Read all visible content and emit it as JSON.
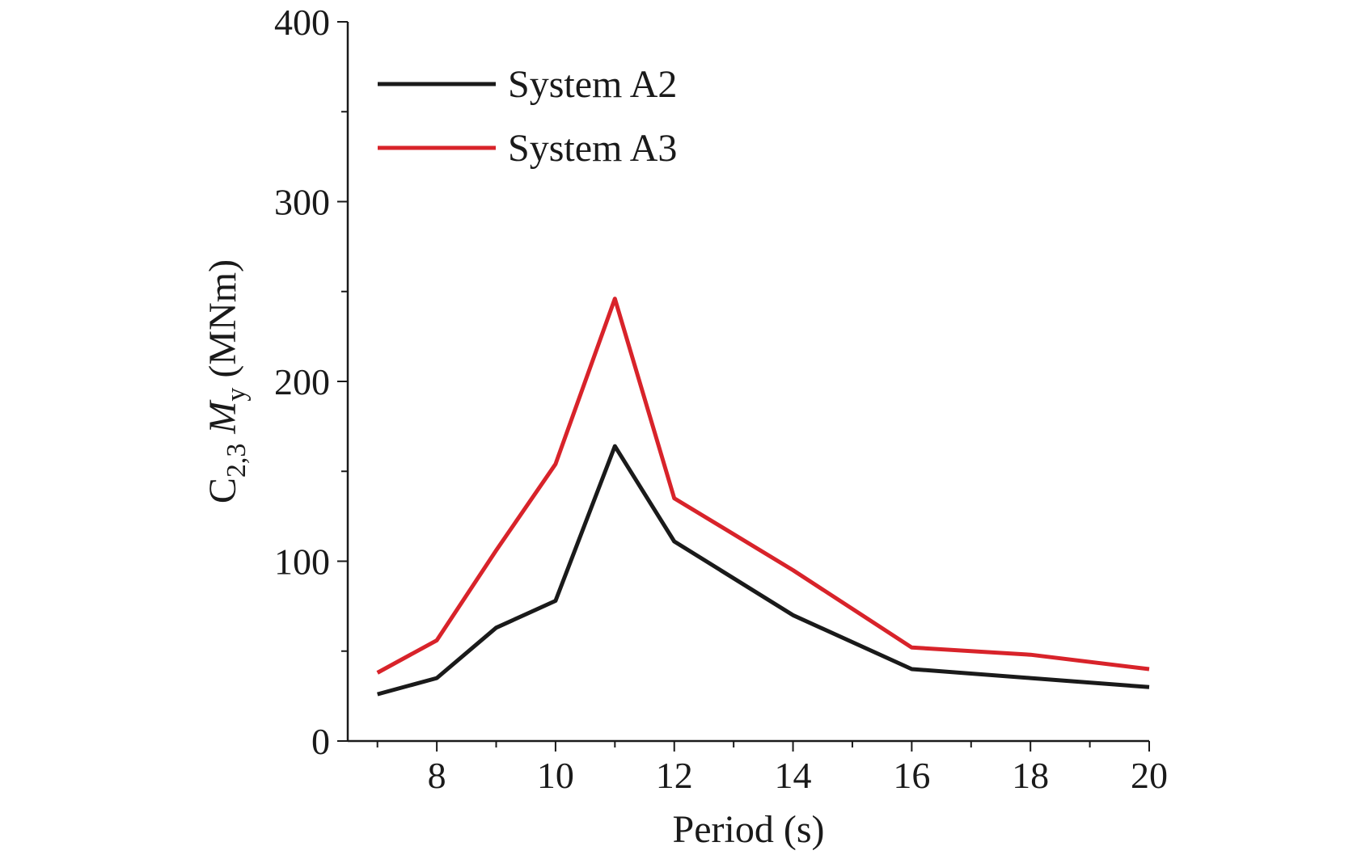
{
  "chart_data": {
    "type": "line",
    "title": "",
    "xlabel": "Period (s)",
    "ylabel": {
      "prefix": "C",
      "prefix_sub": "2,3",
      "symbol": "M",
      "symbol_sub": "y",
      "unit": "(MNm)"
    },
    "xlim": [
      6.5,
      20
    ],
    "ylim": [
      0,
      400
    ],
    "x_ticks": [
      8,
      10,
      12,
      14,
      16,
      18,
      20
    ],
    "x_minor_ticks": [
      7,
      9,
      11,
      13,
      15,
      17,
      19
    ],
    "y_ticks": [
      0,
      100,
      200,
      300,
      400
    ],
    "y_minor_ticks": [
      50,
      150,
      250,
      350
    ],
    "legend_position": "top-left",
    "series": [
      {
        "name": "System A2",
        "color": "#1a1a1a",
        "x": [
          7,
          8,
          9,
          10,
          11,
          12,
          14,
          16,
          18,
          20
        ],
        "y": [
          26,
          35,
          63,
          78,
          164,
          111,
          70,
          40,
          35,
          30
        ]
      },
      {
        "name": "System A3",
        "color": "#d8232a",
        "x": [
          7,
          8,
          9,
          10,
          11,
          12,
          14,
          16,
          18,
          20
        ],
        "y": [
          38,
          56,
          106,
          154,
          246,
          135,
          95,
          52,
          48,
          40
        ]
      }
    ]
  }
}
